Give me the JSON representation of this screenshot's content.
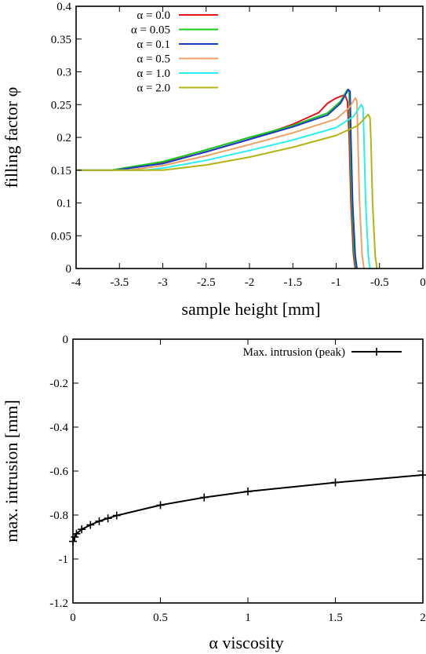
{
  "chart_data": [
    {
      "type": "line",
      "xlabel": "sample height [mm]",
      "ylabel": "filling factor φ",
      "xlim": [
        -4,
        0
      ],
      "ylim": [
        0,
        0.4
      ],
      "xticks": [
        -4,
        -3.5,
        -3,
        -2.5,
        -2,
        -1.5,
        -1,
        -0.5,
        0
      ],
      "xtick_labels": [
        "-4",
        "-3.5",
        "-3",
        "-2.5",
        "-2",
        "-1.5",
        "-1",
        "-0.5",
        "0"
      ],
      "yticks": [
        0,
        0.05,
        0.1,
        0.15,
        0.2,
        0.25,
        0.3,
        0.35,
        0.4
      ],
      "ytick_labels": [
        "0",
        "0.05",
        "0.1",
        "0.15",
        "0.2",
        "0.25",
        "0.3",
        "0.35",
        "0.4"
      ],
      "grid": false,
      "legend_position": "top-left",
      "series": [
        {
          "name": "α = 0.0",
          "color": "#e8141c",
          "x": [
            -4.0,
            -3.6,
            -3.0,
            -2.5,
            -2.0,
            -1.5,
            -1.2,
            -1.1,
            -1.0,
            -0.9,
            -0.87,
            -0.85,
            -0.83,
            -0.8,
            -0.78
          ],
          "y": [
            0.15,
            0.15,
            0.161,
            0.178,
            0.197,
            0.22,
            0.238,
            0.252,
            0.26,
            0.265,
            0.255,
            0.2,
            0.1,
            0.02,
            0.0
          ]
        },
        {
          "name": "α = 0.05",
          "color": "#19c81e",
          "x": [
            -4.0,
            -3.6,
            -3.0,
            -2.5,
            -2.0,
            -1.5,
            -1.1,
            -0.95,
            -0.87,
            -0.85,
            -0.84,
            -0.82,
            -0.79,
            -0.77
          ],
          "y": [
            0.15,
            0.15,
            0.163,
            0.181,
            0.2,
            0.218,
            0.237,
            0.255,
            0.273,
            0.27,
            0.2,
            0.1,
            0.02,
            0.0
          ]
        },
        {
          "name": "α = 0.1",
          "color": "#1e3cc8",
          "x": [
            -4.0,
            -3.55,
            -3.0,
            -2.5,
            -2.0,
            -1.5,
            -1.1,
            -0.95,
            -0.86,
            -0.84,
            -0.83,
            -0.81,
            -0.78,
            -0.76
          ],
          "y": [
            0.15,
            0.15,
            0.16,
            0.178,
            0.197,
            0.216,
            0.234,
            0.252,
            0.273,
            0.27,
            0.2,
            0.1,
            0.02,
            0.0
          ]
        },
        {
          "name": "α = 0.5",
          "color": "#f0a064",
          "x": [
            -4.0,
            -3.4,
            -3.0,
            -2.5,
            -2.0,
            -1.5,
            -1.0,
            -0.85,
            -0.78,
            -0.76,
            -0.75,
            -0.73,
            -0.7,
            -0.68
          ],
          "y": [
            0.15,
            0.15,
            0.157,
            0.172,
            0.189,
            0.207,
            0.228,
            0.245,
            0.26,
            0.255,
            0.2,
            0.1,
            0.02,
            0.0
          ]
        },
        {
          "name": "α = 1.0",
          "color": "#28f0f0",
          "x": [
            -4.0,
            -3.2,
            -3.0,
            -2.5,
            -2.0,
            -1.5,
            -1.0,
            -0.8,
            -0.71,
            -0.69,
            -0.68,
            -0.66,
            -0.63,
            -0.61
          ],
          "y": [
            0.15,
            0.15,
            0.153,
            0.165,
            0.18,
            0.196,
            0.215,
            0.232,
            0.25,
            0.245,
            0.2,
            0.1,
            0.02,
            0.0
          ]
        },
        {
          "name": "α = 2.0",
          "color": "#b4b414",
          "x": [
            -4.0,
            -3.0,
            -2.5,
            -2.0,
            -1.5,
            -1.0,
            -0.75,
            -0.63,
            -0.61,
            -0.6,
            -0.58,
            -0.55,
            -0.53
          ],
          "y": [
            0.15,
            0.15,
            0.158,
            0.17,
            0.185,
            0.203,
            0.218,
            0.235,
            0.23,
            0.2,
            0.1,
            0.02,
            0.0
          ]
        }
      ]
    },
    {
      "type": "line",
      "xlabel": "α viscosity",
      "ylabel": "max. intrusion [mm]",
      "xlim": [
        0,
        2
      ],
      "ylim": [
        -1.2,
        0
      ],
      "xticks": [
        0,
        0.5,
        1,
        1.5,
        2
      ],
      "xtick_labels": [
        "0",
        "0.5",
        "1",
        "1.5",
        "2"
      ],
      "yticks": [
        -1.2,
        -1,
        -0.8,
        -0.6,
        -0.4,
        -0.2,
        0
      ],
      "ytick_labels": [
        "-1.2",
        "-1",
        "-0.8",
        "-0.6",
        "-0.4",
        "-0.2",
        "0"
      ],
      "grid": false,
      "legend_position": "top-right",
      "series": [
        {
          "name": "Max. intrusion (peak)",
          "color": "#000000",
          "marker": "plus",
          "x": [
            0.0,
            0.01,
            0.02,
            0.05,
            0.1,
            0.15,
            0.2,
            0.25,
            0.5,
            0.75,
            1.0,
            1.5,
            2.0
          ],
          "y": [
            -0.92,
            -0.9,
            -0.885,
            -0.865,
            -0.845,
            -0.828,
            -0.815,
            -0.802,
            -0.755,
            -0.72,
            -0.693,
            -0.652,
            -0.618
          ]
        }
      ]
    }
  ]
}
